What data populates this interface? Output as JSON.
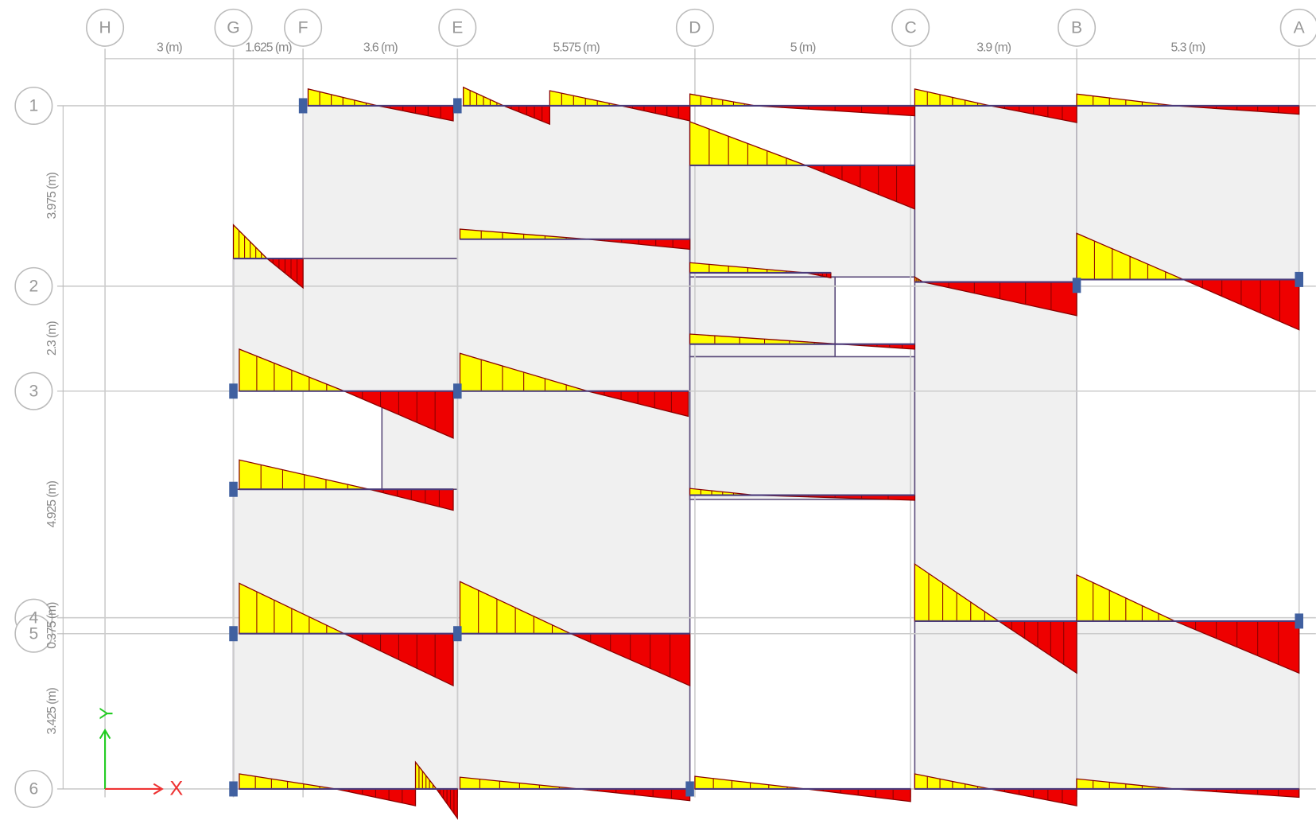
{
  "grid": {
    "columns": [
      "H",
      "G",
      "F",
      "E",
      "D",
      "C",
      "B",
      "A"
    ],
    "column_spacings": [
      "3 (m)",
      "1.625 (m)",
      "3.6 (m)",
      "5.575 (m)",
      "5 (m)",
      "3.9 (m)",
      "5.3 (m)"
    ],
    "rows": [
      "1",
      "2",
      "3",
      "4",
      "5",
      "6"
    ],
    "row_spacings": [
      "3.975 (m)",
      "2.3 (m)",
      "4.925 (m)",
      "0.375 (m)",
      "3.425 (m)"
    ]
  },
  "axes": {
    "x": "X",
    "y": "Y"
  }
}
